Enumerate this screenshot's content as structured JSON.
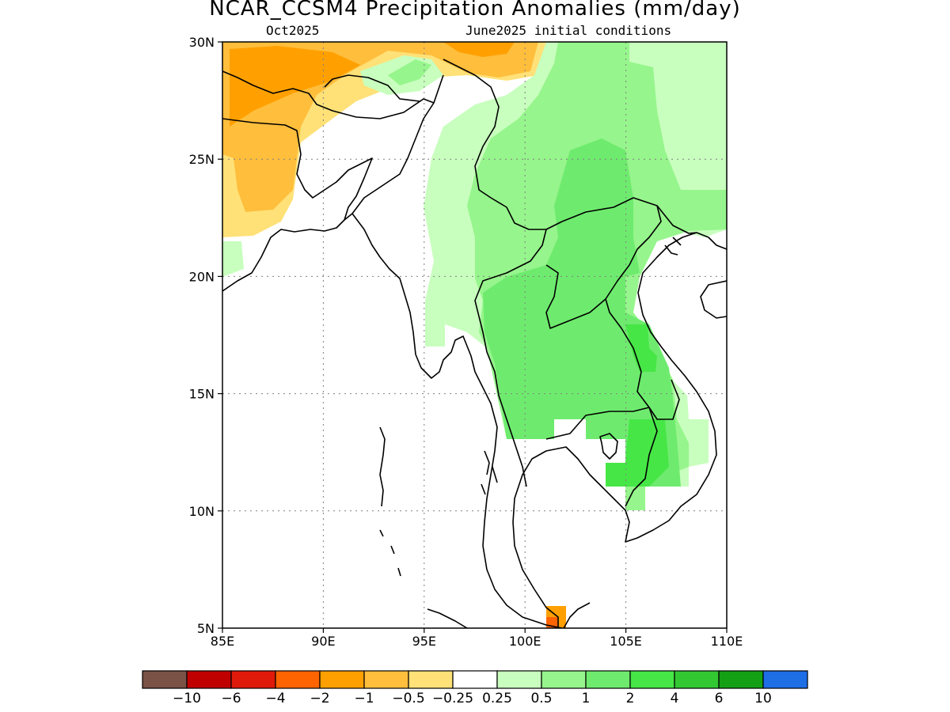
{
  "title": "NCAR_CCSM4 Precipitation Anomalies (mm/day)",
  "subtitle_left": "Oct2025",
  "subtitle_right": "June2025 initial conditions",
  "map": {
    "lon_range": [
      85,
      110
    ],
    "lat_range": [
      5,
      30
    ],
    "x_ticks": [
      {
        "value": 85,
        "label": "85E"
      },
      {
        "value": 90,
        "label": "90E"
      },
      {
        "value": 95,
        "label": "95E"
      },
      {
        "value": 100,
        "label": "100E"
      },
      {
        "value": 105,
        "label": "105E"
      },
      {
        "value": 110,
        "label": "110E"
      }
    ],
    "y_ticks": [
      {
        "value": 5,
        "label": "5N"
      },
      {
        "value": 10,
        "label": "10N"
      },
      {
        "value": 15,
        "label": "15N"
      },
      {
        "value": 20,
        "label": "20N"
      },
      {
        "value": 25,
        "label": "25N"
      },
      {
        "value": 30,
        "label": "30N"
      }
    ],
    "grid": "dotted"
  },
  "colorbar": {
    "colors": [
      "#7a5246",
      "#c00000",
      "#e01a0a",
      "#ff6400",
      "#ffa000",
      "#ffbe3c",
      "#ffe178",
      "#ffffff",
      "#c8ffbe",
      "#96f58c",
      "#6eeb6e",
      "#46e646",
      "#32c832",
      "#14a014",
      "#1e6ee6"
    ],
    "labels": [
      "-10",
      "-6",
      "-4",
      "-2",
      "-1",
      "-0.5",
      "-0.25",
      "0.25",
      "0.5",
      "1",
      "2",
      "4",
      "6",
      "10"
    ]
  }
}
